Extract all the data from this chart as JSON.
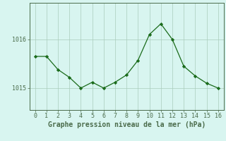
{
  "x": [
    0,
    1,
    2,
    3,
    4,
    5,
    6,
    7,
    8,
    9,
    10,
    11,
    12,
    13,
    14,
    15,
    16
  ],
  "y": [
    1015.65,
    1015.65,
    1015.38,
    1015.22,
    1015.0,
    1015.12,
    1015.0,
    1015.12,
    1015.27,
    1015.57,
    1016.1,
    1016.32,
    1016.0,
    1015.45,
    1015.25,
    1015.1,
    1015.0
  ],
  "line_color": "#1a6b1a",
  "marker_color": "#1a6b1a",
  "bg_color": "#d8f5f0",
  "grid_color": "#aaccbb",
  "axis_color": "#4a6b4a",
  "xlabel": "Graphe pression niveau de la mer (hPa)",
  "xlim": [
    -0.5,
    16.5
  ],
  "ylim": [
    1014.55,
    1016.75
  ],
  "yticks": [
    1015,
    1016
  ],
  "xticks": [
    0,
    1,
    2,
    3,
    4,
    5,
    6,
    7,
    8,
    9,
    10,
    11,
    12,
    13,
    14,
    15,
    16
  ],
  "tick_fontsize": 6.0,
  "xlabel_fontsize": 7.0
}
